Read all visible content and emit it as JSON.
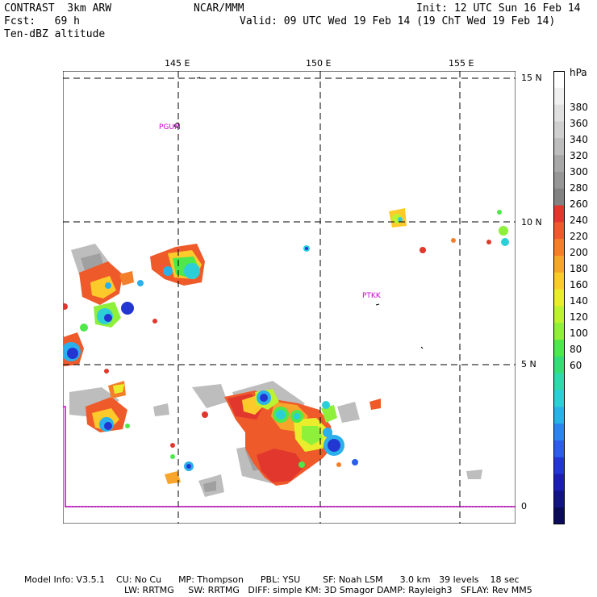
{
  "header": {
    "line1_left": "CONTRAST  3km ARW",
    "line1_center": "NCAR/MMM",
    "line1_right": "Init: 12 UTC Sun 16 Feb 14",
    "line2_left": "Fcst:   69 h",
    "line2_right": "Valid: 09 UTC Wed 19 Feb 14 (19 ChT Wed 19 Feb 14)",
    "line3_left": "Ten-dBZ altitude"
  },
  "map": {
    "lon_labels": [
      "145 E",
      "150 E",
      "155 E"
    ],
    "lat_labels": [
      "15 N",
      "10 N",
      "5 N",
      "0"
    ],
    "stations": [
      "PGUM",
      "PTKK"
    ],
    "boundary_color": "#cc00cc",
    "grid_style": "dashed"
  },
  "colorbar": {
    "unit": "hPa",
    "labels": [
      "380",
      "360",
      "340",
      "320",
      "300",
      "280",
      "260",
      "240",
      "220",
      "200",
      "180",
      "160",
      "140",
      "120",
      "100",
      "80",
      "60"
    ],
    "colors": [
      "#ffffff",
      "#f0f0f0",
      "#e0e0e0",
      "#cfcfcf",
      "#bdbdbd",
      "#a8a8a8",
      "#969696",
      "#828282",
      "#e1372d",
      "#ef5a2b",
      "#f47f2a",
      "#f8a52b",
      "#fccb2b",
      "#eaed2c",
      "#bdf230",
      "#8ef03a",
      "#4ee84a",
      "#36dd77",
      "#2fd9ab",
      "#2ccfd8",
      "#2ab0ea",
      "#2a86ea",
      "#2a5de8",
      "#2436d2",
      "#1b1eb0",
      "#121384",
      "#0b0b5c"
    ]
  },
  "footer": {
    "line1": "Model Info: V3.5.1    CU: No Cu      MP: Thompson      PBL: YSU        SF: Noah LSM      3.0 km   39 levels    18 sec",
    "line2": "LW: RRTMG     SW: RRTMG   DIFF: simple KM: 3D Smagor DAMP: Rayleigh3   SFLAY: Rev MM5"
  }
}
